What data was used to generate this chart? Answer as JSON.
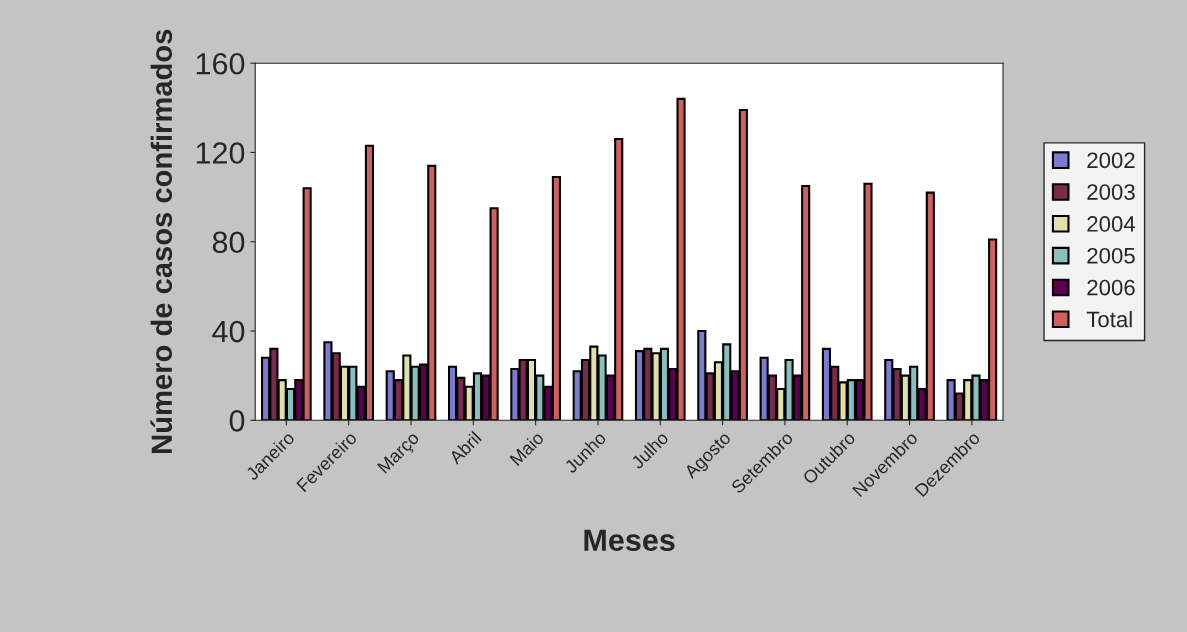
{
  "chart_data": {
    "type": "bar",
    "xlabel": "Meses",
    "ylabel": "Número de casos confirmados",
    "categories": [
      "Janeiro",
      "Fevereiro",
      "Março",
      "Abril",
      "Maio",
      "Junho",
      "Julho",
      "Agosto",
      "Setembro",
      "Outubro",
      "Novembro",
      "Dezembro"
    ],
    "series": [
      {
        "name": "2002",
        "color": "#7b7bd0",
        "values": [
          28,
          35,
          22,
          24,
          23,
          22,
          31,
          40,
          28,
          32,
          27,
          18
        ]
      },
      {
        "name": "2003",
        "color": "#7a2a4a",
        "values": [
          32,
          30,
          18,
          19,
          27,
          27,
          32,
          21,
          20,
          24,
          23,
          12
        ]
      },
      {
        "name": "2004",
        "color": "#e0e0a8",
        "values": [
          18,
          24,
          29,
          15,
          27,
          33,
          30,
          26,
          14,
          17,
          20,
          18
        ]
      },
      {
        "name": "2005",
        "color": "#88c0c0",
        "values": [
          14,
          24,
          24,
          21,
          20,
          29,
          32,
          34,
          27,
          18,
          24,
          20
        ]
      },
      {
        "name": "2006",
        "color": "#5a0050",
        "values": [
          18,
          15,
          25,
          20,
          15,
          20,
          23,
          22,
          20,
          18,
          14,
          18
        ]
      },
      {
        "name": "Total",
        "color": "#d06060",
        "values": [
          104,
          123,
          114,
          95,
          109,
          126,
          144,
          139,
          105,
          106,
          102,
          81
        ]
      }
    ],
    "ylim": [
      0,
      160
    ],
    "yticks": [
      0,
      40,
      80,
      120,
      160
    ],
    "grid": false,
    "legend": "right"
  }
}
